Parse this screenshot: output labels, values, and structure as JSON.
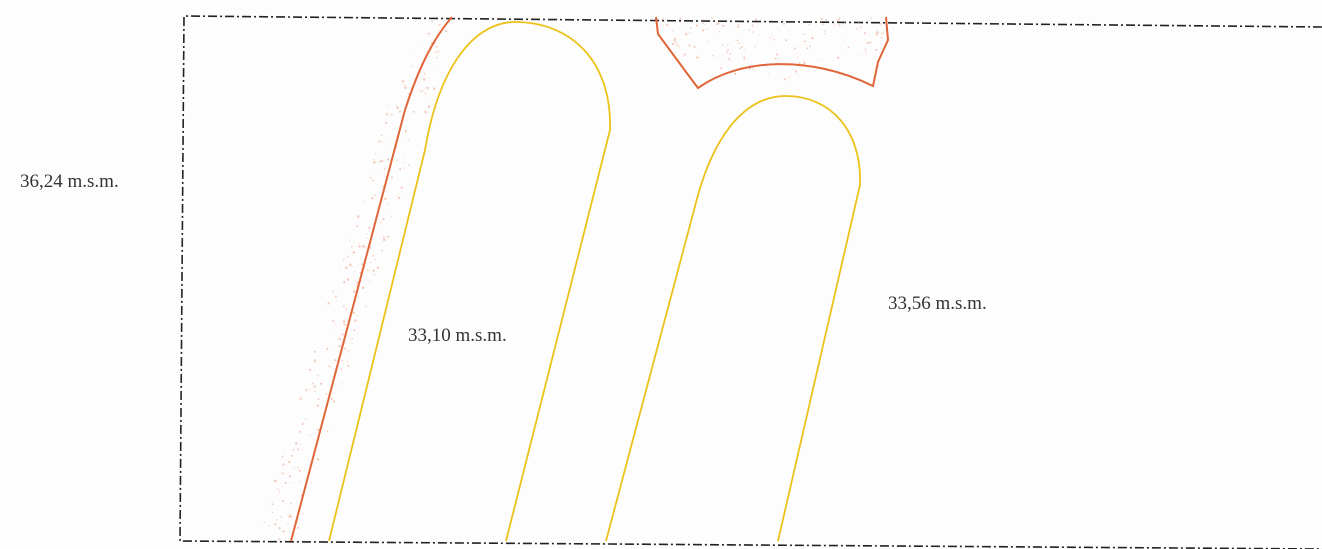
{
  "labels": {
    "elevation_left": "36,24 m.s.m.",
    "elevation_center": "33,10 m.s.m.",
    "elevation_right": "33,56 m.s.m."
  },
  "colors": {
    "boundary": "#222222",
    "excavation_edge": "#e0663a",
    "excavation_speckle": "#e8a184",
    "contour": "#ecc21a",
    "label_text": "#333333"
  }
}
